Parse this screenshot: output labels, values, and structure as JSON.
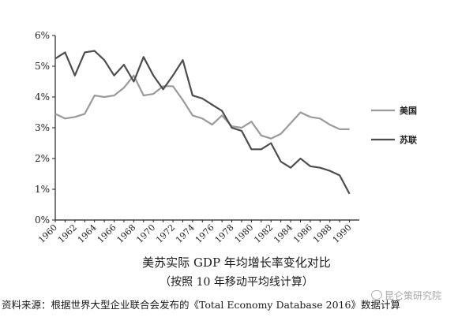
{
  "chart_data": {
    "type": "line",
    "title": "美苏实际 GDP 年均增长率变化对比",
    "subtitle": "（按照 10 年移动平均线计算）",
    "source": "资料来源：根据世界大型企业联合会发布的《Total Economy Database 2016》数据计算",
    "x": [
      1960,
      1961,
      1962,
      1963,
      1964,
      1965,
      1966,
      1967,
      1968,
      1969,
      1970,
      1971,
      1972,
      1973,
      1974,
      1975,
      1976,
      1977,
      1978,
      1979,
      1980,
      1981,
      1982,
      1983,
      1984,
      1985,
      1986,
      1987,
      1988,
      1989,
      1990
    ],
    "x_ticks": [
      "1960",
      "1962",
      "1964",
      "1966",
      "1968",
      "1970",
      "1972",
      "1974",
      "1976",
      "1978",
      "1980",
      "1982",
      "1984",
      "1986",
      "1988",
      "1990"
    ],
    "y_ticks": [
      "0%",
      "1%",
      "2%",
      "3%",
      "4%",
      "5%",
      "6%"
    ],
    "ylim": [
      0,
      6
    ],
    "xlim": [
      1960,
      1991
    ],
    "legend_position": "right",
    "grid": false,
    "series": [
      {
        "name": "美国",
        "color": "#9a9a9a",
        "values": [
          3.45,
          3.3,
          3.35,
          3.45,
          4.05,
          4.0,
          4.05,
          4.3,
          4.7,
          4.05,
          4.1,
          4.35,
          4.35,
          3.9,
          3.4,
          3.3,
          3.1,
          3.4,
          3.05,
          3.0,
          3.2,
          2.75,
          2.65,
          2.8,
          3.15,
          3.5,
          3.35,
          3.3,
          3.1,
          2.95,
          2.95
        ]
      },
      {
        "name": "苏联",
        "color": "#4d4d4d",
        "values": [
          5.25,
          5.45,
          4.7,
          5.45,
          5.5,
          5.2,
          4.7,
          5.05,
          4.5,
          5.3,
          4.7,
          4.25,
          4.7,
          5.2,
          4.05,
          3.95,
          3.75,
          3.55,
          3.0,
          2.9,
          2.3,
          2.3,
          2.5,
          1.9,
          1.7,
          2.0,
          1.75,
          1.7,
          1.6,
          1.45,
          0.85
        ]
      }
    ]
  },
  "watermark_text": "昆仑策研究院",
  "watermark_icon": "wechat-icon"
}
